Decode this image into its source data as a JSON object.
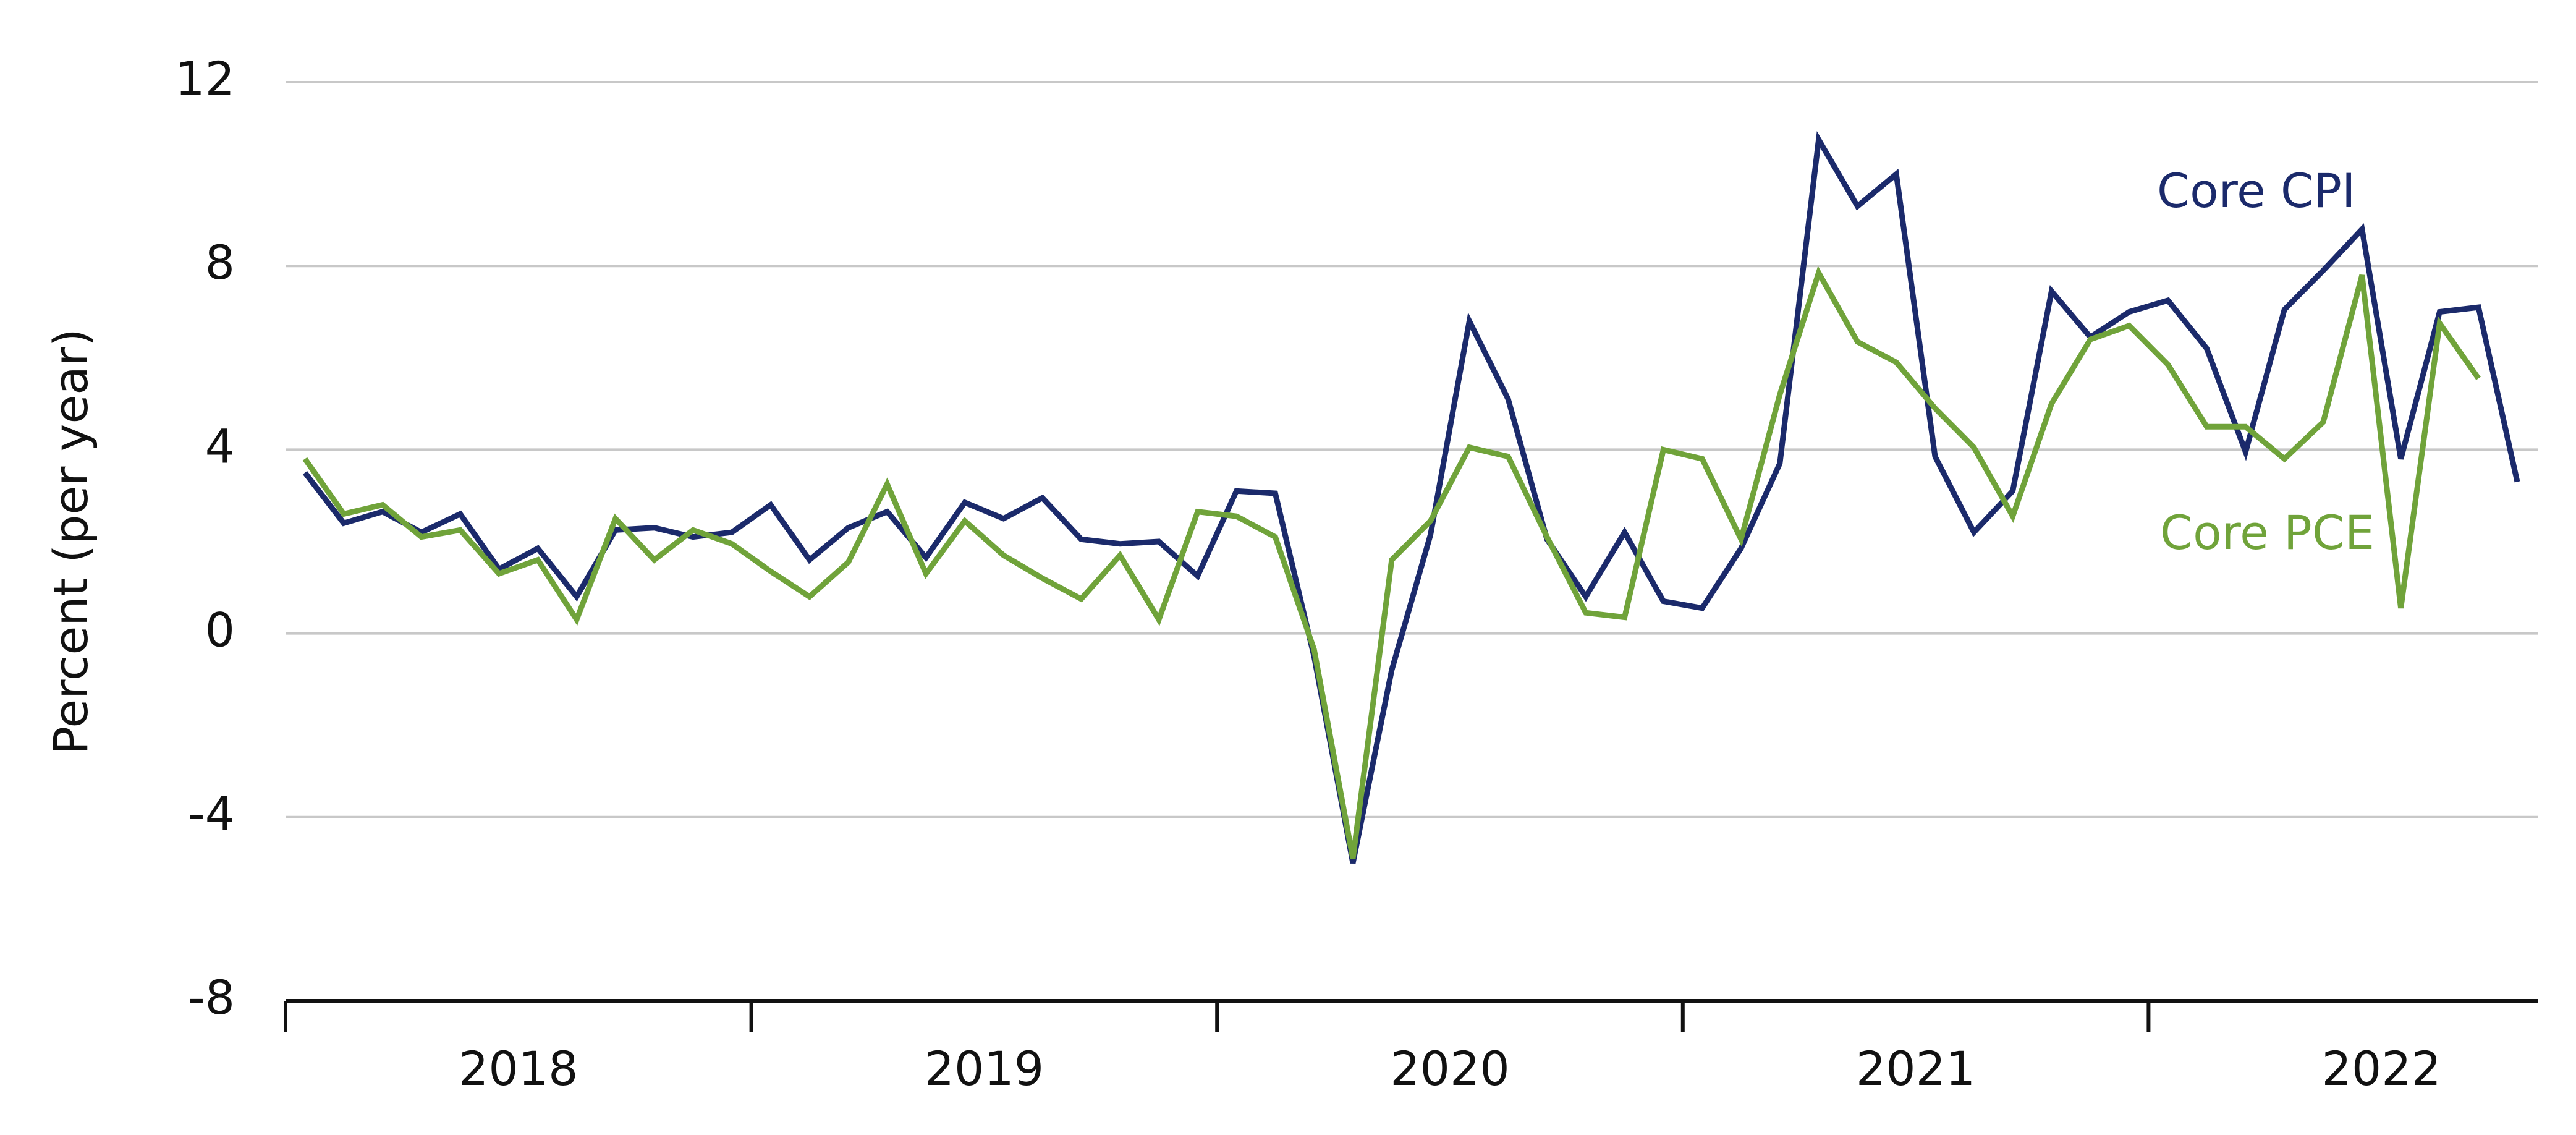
{
  "chart_data": {
    "type": "line",
    "y_label": "Percent (per year)",
    "categories": [
      null,
      null,
      null,
      null,
      null,
      null,
      null,
      null,
      null,
      null,
      null,
      null,
      null,
      null,
      null,
      null,
      null,
      null,
      null,
      null,
      null,
      null,
      null,
      null,
      null,
      null,
      null,
      null,
      null,
      null,
      null,
      null,
      null,
      null,
      null,
      null,
      null,
      null,
      null,
      null,
      null,
      null,
      null,
      null,
      null,
      null,
      null,
      null,
      null,
      null,
      null,
      null,
      null,
      null,
      null,
      null,
      null,
      null
    ],
    "year_labels": [
      "2018",
      "2019",
      "2020",
      "2021",
      "2022"
    ],
    "series": [
      {
        "name": "Core CPI",
        "color": "#1b2a6b",
        "values": [
          3.5,
          2.4,
          2.65,
          2.2,
          2.6,
          1.4,
          1.85,
          0.8,
          2.25,
          2.3,
          2.1,
          2.2,
          2.8,
          1.6,
          2.3,
          2.65,
          1.65,
          2.85,
          2.5,
          2.95,
          2.05,
          1.95,
          2.0,
          1.25,
          3.1,
          3.05,
          -0.5,
          -5.0,
          -0.8,
          2.15,
          6.8,
          5.1,
          2.05,
          0.8,
          2.2,
          0.7,
          0.55,
          1.85,
          3.7,
          10.75,
          9.3,
          10.0,
          3.85,
          2.2,
          3.1,
          7.45,
          6.45,
          7.0,
          7.25,
          6.2,
          3.95,
          7.05,
          7.9,
          8.8,
          3.8,
          7.0,
          7.1,
          3.3
        ]
      },
      {
        "name": "Core PCE",
        "color": "#70a33a",
        "values": [
          3.8,
          2.6,
          2.8,
          2.1,
          2.25,
          1.3,
          1.6,
          0.3,
          2.5,
          1.6,
          2.25,
          1.95,
          1.35,
          0.8,
          1.55,
          3.25,
          1.3,
          2.45,
          1.7,
          1.2,
          0.75,
          1.7,
          0.3,
          2.65,
          2.55,
          2.1,
          -0.35,
          -4.9,
          1.6,
          2.45,
          4.05,
          3.85,
          2.1,
          0.45,
          0.35,
          4.0,
          3.8,
          2.05,
          5.2,
          7.85,
          6.35,
          5.9,
          4.9,
          4.05,
          2.55,
          5.0,
          6.4,
          6.7,
          5.85,
          4.5,
          4.5,
          3.8,
          4.6,
          7.8,
          0.55,
          6.75,
          5.55,
          null
        ]
      }
    ],
    "ylim": [
      -8,
      12
    ],
    "yticks": [
      -8,
      -4,
      0,
      4,
      8,
      12
    ],
    "grid": true
  }
}
